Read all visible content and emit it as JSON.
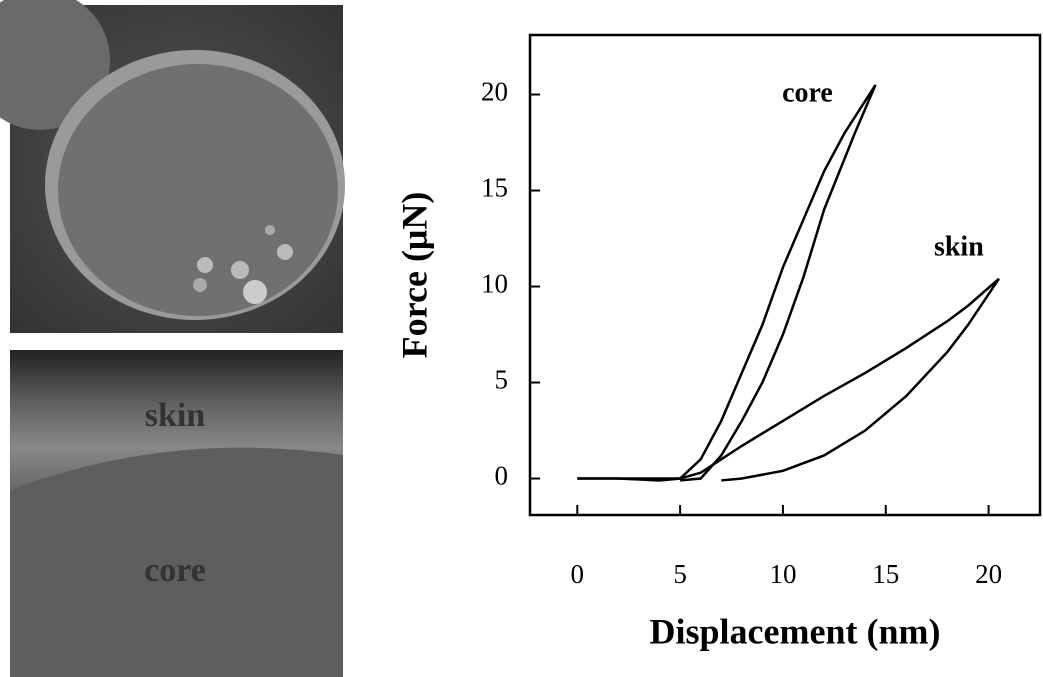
{
  "micrographs": {
    "labels": [
      "skin",
      "core"
    ]
  },
  "chart_data": {
    "type": "line",
    "x_label": "Displacement (nm)",
    "y_label": "Force (μN)",
    "xlim": [
      -2.3,
      22.5
    ],
    "ylim": [
      -1.9,
      23.1
    ],
    "xticks": [
      0,
      5,
      10,
      15,
      20
    ],
    "yticks": [
      0,
      5,
      10,
      15,
      20
    ],
    "series": [
      {
        "name": "core",
        "color": "#000000",
        "x": [
          0,
          2,
          4,
          5,
          6,
          7,
          8,
          9,
          10,
          11,
          12,
          13,
          14.5,
          13.5,
          12,
          11,
          10,
          9,
          8,
          7,
          6,
          5
        ],
        "values": [
          0,
          0,
          -0.1,
          0,
          1,
          3,
          5.5,
          8,
          11,
          13.5,
          16,
          18,
          20.5,
          18,
          14,
          10.5,
          7.5,
          5,
          3,
          1.2,
          0,
          -0.1
        ]
      },
      {
        "name": "skin",
        "color": "#000000",
        "x": [
          0,
          5,
          6,
          7,
          8,
          10,
          12,
          14,
          16,
          18,
          19,
          20.5,
          19,
          18,
          16,
          14,
          12,
          10,
          8,
          7
        ],
        "values": [
          0,
          0,
          0.3,
          1,
          1.7,
          3,
          4.3,
          5.5,
          6.8,
          8.2,
          9,
          10.4,
          8,
          6.6,
          4.3,
          2.5,
          1.2,
          0.4,
          0,
          -0.1
        ]
      }
    ]
  }
}
